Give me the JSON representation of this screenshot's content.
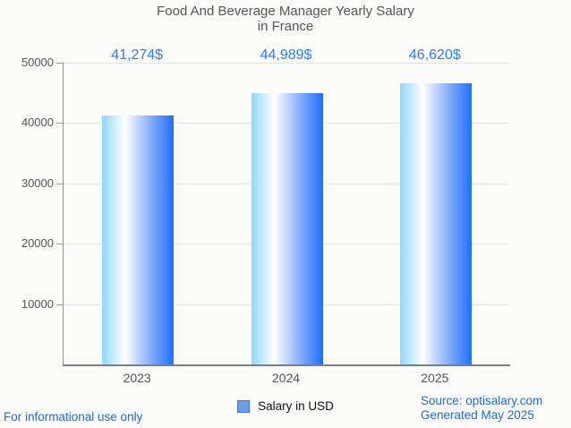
{
  "title": {
    "line1": "Food And Beverage Manager Yearly Salary",
    "line2": "in France"
  },
  "chart_data": {
    "type": "bar",
    "title": "Food And Beverage Manager Yearly Salary in France",
    "categories": [
      "2023",
      "2024",
      "2025"
    ],
    "values": [
      41274,
      44989,
      46620
    ],
    "value_labels": [
      "41,274$",
      "44,989$",
      "46,620$"
    ],
    "series_name": "Salary in USD",
    "xlabel": "",
    "ylabel": "",
    "ylim": [
      0,
      50000
    ],
    "yticks": [
      10000,
      20000,
      30000,
      40000,
      50000
    ],
    "grid": true,
    "legend_position": "bottom-center",
    "bar_gradient_stops": [
      "#8fd8fc 0%",
      "#ffffff 32%",
      "#8cb2f9 66%",
      "#1f6efc 100%"
    ]
  },
  "legend": {
    "label": "Salary in USD",
    "swatch_fill": "#6d9eeb",
    "swatch_border": "#3c78d8"
  },
  "footer": {
    "left": "For informational use only",
    "source": "Source: optisalary.com",
    "generated": "Generated May 2025"
  },
  "colors": {
    "value_label": "#2b7bff",
    "footer_link": "#1d6ae2",
    "axis_text": "#555555",
    "title_text": "#555555",
    "gridline": "#e5e5e5",
    "axis_line": "#7f7f7f",
    "background": "#fbfbfa"
  }
}
